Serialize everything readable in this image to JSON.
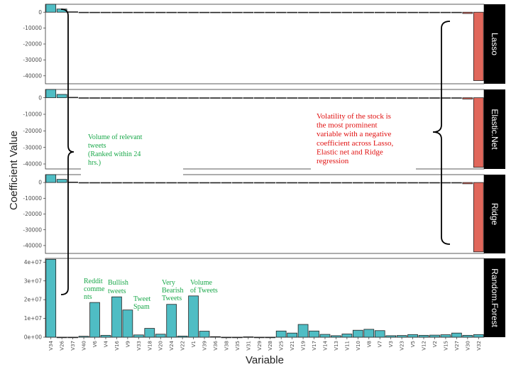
{
  "chart_data": {
    "type": "bar",
    "xlabel": "Variable",
    "ylabel": "Coefficient Value",
    "categories": [
      "V34",
      "V26",
      "V37",
      "V40",
      "V6",
      "V4",
      "V16",
      "V9",
      "V33",
      "V18",
      "V20",
      "V24",
      "V22",
      "V1",
      "V39",
      "V36",
      "V38",
      "V35",
      "V31",
      "V29",
      "V28",
      "V25",
      "V21",
      "V19",
      "V17",
      "V14",
      "V13",
      "V11",
      "V10",
      "V8",
      "V7",
      "V3",
      "V23",
      "V5",
      "V12",
      "V2",
      "V15",
      "V27",
      "V30",
      "V32"
    ],
    "facets": [
      {
        "name": "Lasso",
        "ylim": [
          -45000,
          5000
        ],
        "yticks": [
          0,
          -10000,
          -20000,
          -30000,
          -40000
        ],
        "ytick_labels": [
          "0",
          "-10000",
          "-20000",
          "-30000",
          "-40000"
        ],
        "values": [
          5000,
          2000,
          300,
          -100,
          -120,
          -110,
          -100,
          -100,
          -90,
          -90,
          -90,
          -90,
          -90,
          -90,
          -90,
          -90,
          -90,
          -90,
          -90,
          -90,
          -90,
          -90,
          -90,
          -90,
          -90,
          -90,
          -90,
          -90,
          -90,
          -90,
          -90,
          -90,
          -90,
          -90,
          -90,
          -90,
          -90,
          -90,
          -800,
          -43000
        ]
      },
      {
        "name": "Elastic.Net",
        "ylim": [
          -43000,
          5000
        ],
        "yticks": [
          0,
          -10000,
          -20000,
          -30000,
          -40000
        ],
        "ytick_labels": [
          "0",
          "-10000",
          "-20000",
          "-30000",
          "-40000"
        ],
        "values": [
          5000,
          2000,
          300,
          -100,
          -120,
          -110,
          -100,
          -100,
          -90,
          -90,
          -90,
          -90,
          -90,
          -90,
          -90,
          -90,
          -90,
          -90,
          -90,
          -90,
          -90,
          -90,
          -90,
          -90,
          -90,
          -90,
          -90,
          -90,
          -90,
          -90,
          -90,
          -90,
          -90,
          -90,
          -90,
          -90,
          -90,
          -90,
          -800,
          -42000
        ]
      },
      {
        "name": "Ridge",
        "ylim": [
          -45000,
          5000
        ],
        "yticks": [
          0,
          -10000,
          -20000,
          -30000,
          -40000
        ],
        "ytick_labels": [
          "0",
          "-10000",
          "-20000",
          "-30000",
          "-40000"
        ],
        "values": [
          5000,
          2000,
          300,
          -100,
          -120,
          -110,
          -100,
          -100,
          -90,
          -90,
          -90,
          -90,
          -90,
          -90,
          -90,
          -90,
          -90,
          -90,
          -90,
          -90,
          -90,
          -90,
          -90,
          -90,
          -90,
          -90,
          -90,
          -90,
          -90,
          -90,
          -90,
          -90,
          -90,
          -90,
          -90,
          -90,
          -90,
          -90,
          -800,
          -44000
        ]
      },
      {
        "name": "Random.Forest",
        "ylim": [
          0,
          42000000
        ],
        "yticks": [
          0,
          10000000,
          20000000,
          30000000,
          40000000
        ],
        "ytick_labels": [
          "0e+00",
          "1e+07",
          "2e+07",
          "3e+07",
          "4e+07"
        ],
        "values": [
          41500000,
          0,
          0,
          500000,
          18500000,
          1000000,
          21500000,
          14500000,
          1200000,
          4700000,
          1600000,
          17500000,
          600000,
          22000000,
          3200000,
          300000,
          0,
          0,
          200000,
          0,
          0,
          3300000,
          2200000,
          6800000,
          3300000,
          1500000,
          800000,
          1700000,
          3700000,
          4200000,
          3500000,
          800000,
          900000,
          1400000,
          1000000,
          1100000,
          1300000,
          2200000,
          1000000,
          1400000
        ]
      }
    ],
    "annotations": {
      "volume": [
        "Volume of relevant",
        "tweets",
        "(Ranked within 24",
        "hrs.)"
      ],
      "volatility": [
        "Volatility of the stock is",
        "the most prominent",
        "variable with a negative",
        "coefficient across Lasso,",
        "Elastic net and Ridge",
        "regression"
      ],
      "reddit": [
        "Reddit",
        "comme",
        "nts"
      ],
      "bullish": [
        "Bullish",
        "tweets"
      ],
      "spam": [
        "Tweet",
        "Spam"
      ],
      "bearish": [
        "Very",
        "Bearish",
        "Tweets"
      ],
      "volume_tweets": [
        "Volume",
        "of Tweets"
      ]
    },
    "colors": {
      "positive": "#4fbdc4",
      "negative": "#e0675b",
      "strip": "#000000"
    }
  }
}
